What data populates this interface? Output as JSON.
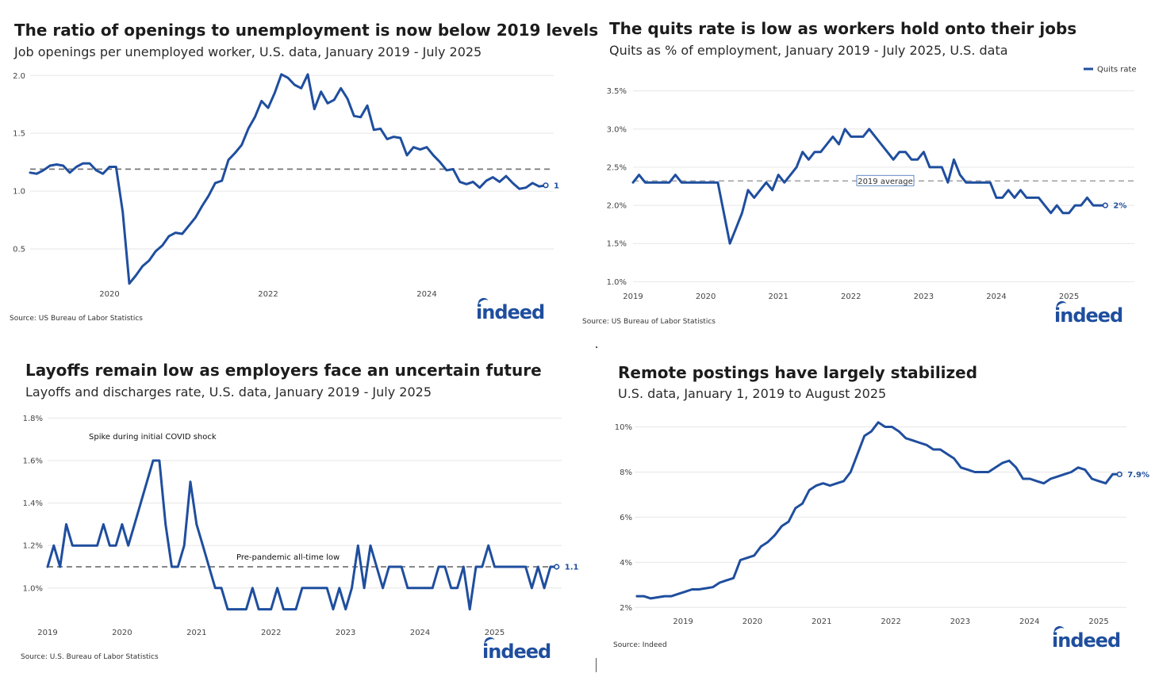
{
  "panels": {
    "p1": {
      "title": "The ratio of openings to unemployment is now below 2019 levels",
      "subtitle": "Job openings per unemployed worker, U.S. data, January 2019 - July 2025",
      "source": "Source: US Bureau of Labor Statistics",
      "logo": "indeed"
    },
    "p2": {
      "title": "The quits rate is low as workers hold onto their jobs",
      "subtitle": "Quits as % of employment, January 2019 - July 2025, U.S. data",
      "source": "Source: US Bureau of Labor Statistics",
      "logo": "indeed"
    },
    "p3": {
      "title": "Layoffs remain low as employers face an uncertain future",
      "subtitle": "Layoffs and discharges rate, U.S. data, January 2019 - July 2025",
      "source": "Source: U.S. Bureau of Labor Statistics",
      "logo": "indeed"
    },
    "p4": {
      "title": "Remote postings have largely stabilized",
      "subtitle": "U.S. data, January 1, 2019 to August 2025",
      "source": "Source: Indeed",
      "logo": "indeed"
    }
  },
  "chart_data": [
    {
      "type": "line",
      "title": "The ratio of openings to unemployment is now below 2019 levels",
      "subtitle": "Job openings per unemployed worker, U.S. data, January 2019 - July 2025",
      "color": "#1f4e9e",
      "x_start": "2019-01",
      "x_range": [
        2019.0,
        2025.6
      ],
      "ylim": [
        0.15,
        2.05
      ],
      "y_ticks": [
        0.5,
        1.0,
        1.5,
        2.0
      ],
      "y_tick_labels": [
        "0.5",
        "1.0",
        "1.5",
        "2.0"
      ],
      "x_ticks": [
        2020,
        2022,
        2024
      ],
      "x_tick_labels": [
        "2020",
        "2022",
        "2024"
      ],
      "reference_line": 1.19,
      "end_label": "1",
      "grid": true,
      "series": [
        {
          "values": [
            1.16,
            1.15,
            1.18,
            1.22,
            1.23,
            1.22,
            1.16,
            1.21,
            1.24,
            1.24,
            1.18,
            1.15,
            1.21,
            1.21,
            0.82,
            0.2,
            0.27,
            0.35,
            0.4,
            0.48,
            0.53,
            0.61,
            0.64,
            0.63,
            0.7,
            0.77,
            0.87,
            0.96,
            1.07,
            1.09,
            1.27,
            1.33,
            1.4,
            1.54,
            1.64,
            1.78,
            1.72,
            1.85,
            2.01,
            1.98,
            1.92,
            1.89,
            2.01,
            1.71,
            1.86,
            1.76,
            1.79,
            1.89,
            1.8,
            1.65,
            1.64,
            1.74,
            1.53,
            1.54,
            1.45,
            1.47,
            1.46,
            1.31,
            1.38,
            1.36,
            1.38,
            1.31,
            1.25,
            1.18,
            1.19,
            1.08,
            1.06,
            1.08,
            1.03,
            1.09,
            1.12,
            1.08,
            1.13,
            1.07,
            1.02,
            1.03,
            1.07,
            1.04,
            1.05
          ]
        }
      ]
    },
    {
      "type": "line",
      "title": "The quits rate is low as workers hold onto their jobs",
      "subtitle": "Quits as % of employment, January 2019 - July 2025, U.S. data",
      "color": "#1f4e9e",
      "x_start": "2019-01",
      "x_range": [
        2019.0,
        2025.9
      ],
      "ylim": [
        0.9,
        3.6
      ],
      "y_ticks": [
        1.0,
        1.5,
        2.0,
        2.5,
        3.0,
        3.5
      ],
      "y_tick_labels": [
        "1.0%",
        "1.5%",
        "2.0%",
        "2.5%",
        "3.0%",
        "3.5%"
      ],
      "x_ticks": [
        2019,
        2020,
        2021,
        2022,
        2023,
        2024,
        2025
      ],
      "x_tick_labels": [
        "2019",
        "2020",
        "2021",
        "2022",
        "2023",
        "2024",
        "2025"
      ],
      "reference_line": 2.32,
      "reference_label": "2019 average",
      "end_label": "2%",
      "legend": "Quits rate",
      "legend_position": "top-right",
      "grid": true,
      "series": [
        {
          "name": "Quits rate",
          "values": [
            2.3,
            2.4,
            2.3,
            2.3,
            2.3,
            2.3,
            2.3,
            2.4,
            2.3,
            2.3,
            2.3,
            2.3,
            2.3,
            2.3,
            2.3,
            1.9,
            1.5,
            1.7,
            1.9,
            2.2,
            2.1,
            2.2,
            2.3,
            2.2,
            2.4,
            2.3,
            2.4,
            2.5,
            2.7,
            2.6,
            2.7,
            2.7,
            2.8,
            2.9,
            2.8,
            3.0,
            2.9,
            2.9,
            2.9,
            3.0,
            2.9,
            2.8,
            2.7,
            2.6,
            2.7,
            2.7,
            2.6,
            2.6,
            2.7,
            2.5,
            2.5,
            2.5,
            2.3,
            2.6,
            2.4,
            2.3,
            2.3,
            2.3,
            2.3,
            2.3,
            2.1,
            2.1,
            2.2,
            2.1,
            2.2,
            2.1,
            2.1,
            2.1,
            2.0,
            1.9,
            2.0,
            1.9,
            1.9,
            2.0,
            2.0,
            2.1,
            2.0,
            2.0,
            2.0
          ]
        }
      ]
    },
    {
      "type": "line",
      "title": "Layoffs remain low as employers face an uncertain future",
      "subtitle": "Layoffs and discharges rate, U.S. data, January 2019 - July 2025",
      "color": "#1f4e9e",
      "x_start": "2019-01",
      "x_range": [
        2019.0,
        2025.9
      ],
      "ylim": [
        0.85,
        1.82
      ],
      "y_ticks": [
        1.0,
        1.2,
        1.4,
        1.6,
        1.8
      ],
      "y_tick_labels": [
        "1.0%",
        "1.2%",
        "1.4%",
        "1.6%",
        "1.8%"
      ],
      "x_ticks": [
        2019,
        2020,
        2021,
        2022,
        2023,
        2024,
        2025
      ],
      "x_tick_labels": [
        "2019",
        "2020",
        "2021",
        "2022",
        "2023",
        "2024",
        "2025"
      ],
      "reference_line": 1.1,
      "reference_label": "Pre-pandemic all-time low",
      "annotations": [
        "Spike during initial COVID shock"
      ],
      "end_label": "1.1%",
      "grid": true,
      "series": [
        {
          "values": [
            1.1,
            1.2,
            1.1,
            1.3,
            1.2,
            1.2,
            1.2,
            1.2,
            1.2,
            1.3,
            1.2,
            1.2,
            1.3,
            1.2,
            1.3,
            1.4,
            1.5,
            1.6,
            1.6,
            1.3,
            1.1,
            1.1,
            1.2,
            1.5,
            1.3,
            1.2,
            1.1,
            1.0,
            1.0,
            0.9,
            0.9,
            0.9,
            0.9,
            1.0,
            0.9,
            0.9,
            0.9,
            1.0,
            0.9,
            0.9,
            0.9,
            1.0,
            1.0,
            1.0,
            1.0,
            1.0,
            0.9,
            1.0,
            0.9,
            1.0,
            1.2,
            1.0,
            1.2,
            1.1,
            1.0,
            1.1,
            1.1,
            1.1,
            1.0,
            1.0,
            1.0,
            1.0,
            1.0,
            1.1,
            1.1,
            1.0,
            1.0,
            1.1,
            0.9,
            1.1,
            1.1,
            1.2,
            1.1,
            1.1,
            1.1,
            1.1,
            1.1,
            1.1,
            1.0,
            1.1,
            1.0,
            1.1,
            1.1
          ]
        }
      ]
    },
    {
      "type": "line",
      "title": "Remote postings have largely stabilized",
      "subtitle": "U.S. data, January 1, 2019 to August 2025",
      "color": "#1f4e9e",
      "x_start": "2018-05",
      "x_range": [
        2018.3,
        2025.4
      ],
      "ylim": [
        1.8,
        10.3
      ],
      "y_ticks": [
        2,
        4,
        6,
        8,
        10
      ],
      "y_tick_labels": [
        "2%",
        "4%",
        "6%",
        "8%",
        "10%"
      ],
      "x_ticks": [
        2019,
        2020,
        2021,
        2022,
        2023,
        2024,
        2025
      ],
      "x_tick_labels": [
        "2019",
        "2020",
        "2021",
        "2022",
        "2023",
        "2024",
        "2025"
      ],
      "end_label": "7.9%",
      "grid": true,
      "series": [
        {
          "values": [
            2.5,
            2.5,
            2.4,
            2.45,
            2.5,
            2.5,
            2.6,
            2.7,
            2.8,
            2.8,
            2.85,
            2.9,
            3.1,
            3.2,
            3.3,
            4.1,
            4.2,
            4.3,
            4.7,
            4.9,
            5.2,
            5.6,
            5.8,
            6.4,
            6.6,
            7.2,
            7.4,
            7.5,
            7.4,
            7.5,
            7.6,
            8.0,
            8.8,
            9.6,
            9.8,
            10.2,
            10.0,
            10.0,
            9.8,
            9.5,
            9.4,
            9.3,
            9.2,
            9.0,
            9.0,
            8.8,
            8.6,
            8.2,
            8.1,
            8.0,
            8.0,
            8.0,
            8.2,
            8.4,
            8.5,
            8.2,
            7.7,
            7.7,
            7.6,
            7.5,
            7.7,
            7.8,
            7.9,
            8.0,
            8.2,
            8.1,
            7.7,
            7.6,
            7.5,
            7.9,
            7.9
          ]
        }
      ]
    }
  ]
}
